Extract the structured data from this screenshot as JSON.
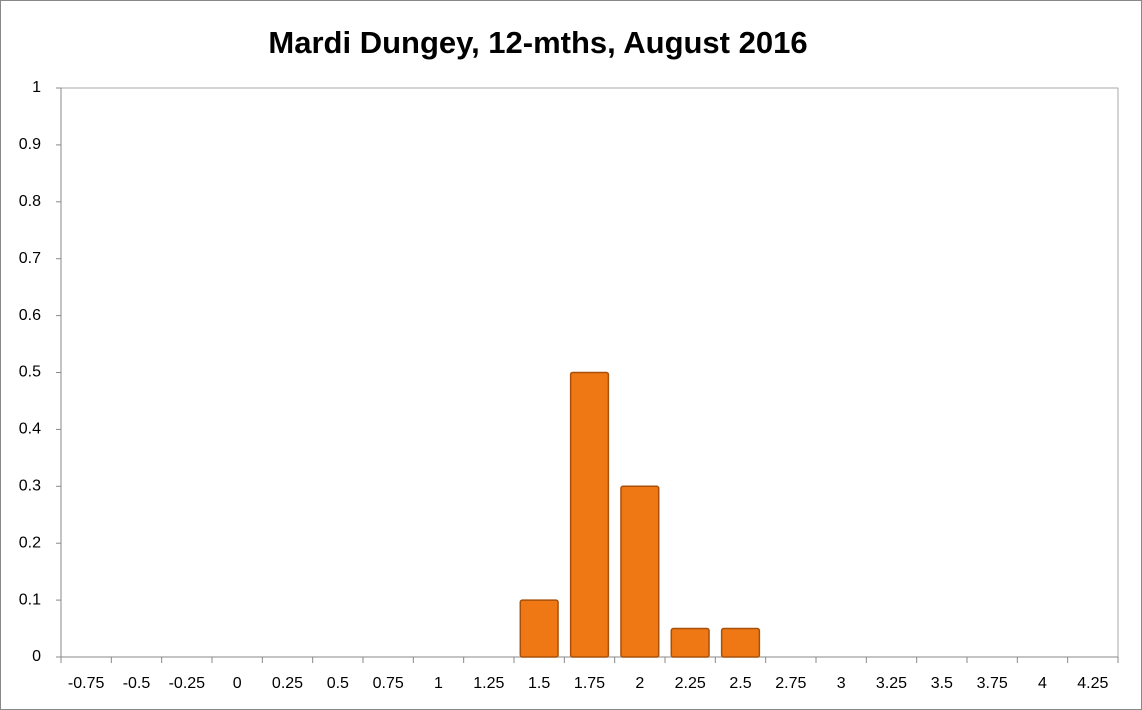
{
  "chart_data": {
    "type": "bar",
    "title": "Mardi Dungey, 12-mths, August 2016",
    "categories": [
      "-0.75",
      "-0.5",
      "-0.25",
      "0",
      "0.25",
      "0.5",
      "0.75",
      "1",
      "1.25",
      "1.5",
      "1.75",
      "2",
      "2.25",
      "2.5",
      "2.75",
      "3",
      "3.25",
      "3.5",
      "3.75",
      "4",
      "4.25"
    ],
    "values": [
      0,
      0,
      0,
      0,
      0,
      0,
      0,
      0,
      0,
      0.1,
      0.5,
      0.3,
      0.05,
      0.05,
      0,
      0,
      0,
      0,
      0,
      0,
      0
    ],
    "color": "#f07814",
    "ylim": [
      0,
      1
    ],
    "yticks": [
      0,
      0.1,
      0.2,
      0.3,
      0.4,
      0.5,
      0.6,
      0.7,
      0.8,
      0.9,
      1
    ],
    "grid": false
  }
}
